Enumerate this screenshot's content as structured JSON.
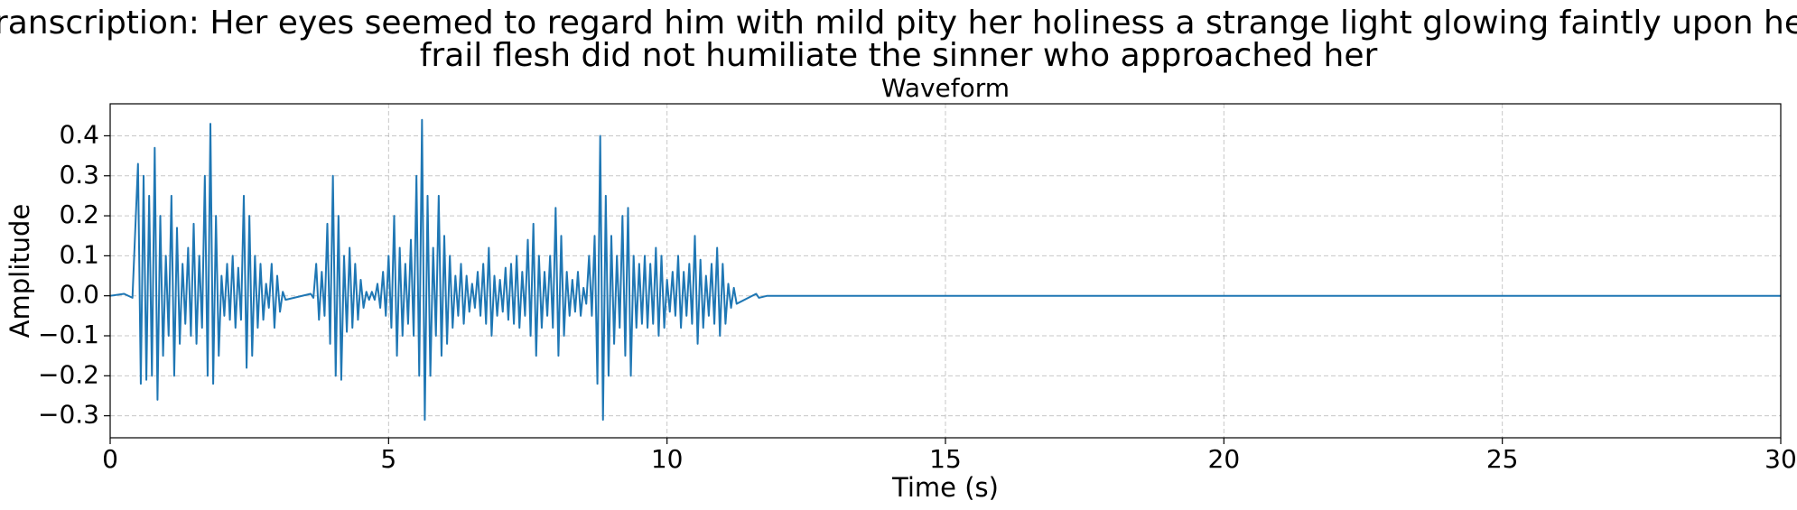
{
  "chart_data": {
    "type": "line",
    "title_lines": [
      "Transcription: Her eyes seemed to regard him with mild pity her holiness a strange light glowing faintly upon her",
      "frail flesh did not humiliate the sinner who approached her"
    ],
    "subtitle": "Waveform",
    "x_label": "Time (s)",
    "y_label": "Amplitude",
    "color": "#1f77b4",
    "grid": true,
    "xlim": [
      0,
      30
    ],
    "ylim": [
      -0.355,
      0.48
    ],
    "xticks": [
      0,
      5,
      10,
      15,
      20,
      25,
      30
    ],
    "yticks": [
      {
        "value": -0.3,
        "label": "−0.3"
      },
      {
        "value": -0.2,
        "label": "−0.2"
      },
      {
        "value": -0.1,
        "label": "−0.1"
      },
      {
        "value": 0,
        "label": "0.0"
      },
      0.1,
      0.2,
      0.3,
      0.4
    ],
    "x": [
      0,
      0.25,
      0.4,
      0.5,
      0.55,
      0.6,
      0.65,
      0.7,
      0.75,
      0.8,
      0.85,
      0.9,
      0.95,
      1.0,
      1.05,
      1.1,
      1.15,
      1.2,
      1.25,
      1.3,
      1.35,
      1.4,
      1.45,
      1.5,
      1.55,
      1.6,
      1.65,
      1.7,
      1.75,
      1.8,
      1.85,
      1.9,
      1.95,
      2.0,
      2.05,
      2.1,
      2.15,
      2.2,
      2.25,
      2.3,
      2.35,
      2.4,
      2.45,
      2.5,
      2.55,
      2.6,
      2.65,
      2.7,
      2.75,
      2.8,
      2.85,
      2.9,
      2.95,
      3.0,
      3.05,
      3.1,
      3.15,
      3.6,
      3.65,
      3.7,
      3.75,
      3.8,
      3.85,
      3.9,
      3.95,
      4.0,
      4.05,
      4.1,
      4.15,
      4.2,
      4.25,
      4.3,
      4.35,
      4.4,
      4.45,
      4.5,
      4.55,
      4.6,
      4.65,
      4.7,
      4.75,
      4.8,
      4.85,
      4.9,
      4.95,
      5.0,
      5.05,
      5.1,
      5.15,
      5.2,
      5.25,
      5.3,
      5.35,
      5.4,
      5.45,
      5.5,
      5.55,
      5.6,
      5.65,
      5.7,
      5.75,
      5.8,
      5.85,
      5.9,
      5.95,
      6.0,
      6.05,
      6.1,
      6.15,
      6.2,
      6.25,
      6.3,
      6.35,
      6.4,
      6.45,
      6.5,
      6.55,
      6.6,
      6.65,
      6.7,
      6.75,
      6.8,
      6.85,
      6.9,
      6.95,
      7.0,
      7.05,
      7.1,
      7.15,
      7.2,
      7.25,
      7.3,
      7.35,
      7.4,
      7.45,
      7.5,
      7.55,
      7.6,
      7.65,
      7.7,
      7.75,
      7.8,
      7.85,
      7.9,
      7.95,
      8.0,
      8.05,
      8.1,
      8.15,
      8.2,
      8.25,
      8.3,
      8.35,
      8.4,
      8.45,
      8.5,
      8.55,
      8.6,
      8.65,
      8.7,
      8.75,
      8.8,
      8.85,
      8.9,
      8.95,
      9.0,
      9.05,
      9.1,
      9.15,
      9.2,
      9.25,
      9.3,
      9.35,
      9.4,
      9.45,
      9.5,
      9.55,
      9.6,
      9.65,
      9.7,
      9.75,
      9.8,
      9.85,
      9.9,
      9.95,
      10.0,
      10.05,
      10.1,
      10.15,
      10.2,
      10.25,
      10.3,
      10.35,
      10.4,
      10.45,
      10.5,
      10.55,
      10.6,
      10.65,
      10.7,
      10.75,
      10.8,
      10.85,
      10.9,
      10.95,
      11.0,
      11.05,
      11.1,
      11.15,
      11.2,
      11.25,
      11.6,
      11.65,
      11.8,
      30
    ],
    "values": [
      0,
      0.005,
      -0.005,
      0.33,
      -0.22,
      0.3,
      -0.21,
      0.25,
      -0.2,
      0.37,
      -0.26,
      0.2,
      -0.15,
      0.1,
      -0.1,
      0.25,
      -0.2,
      0.17,
      -0.12,
      0.08,
      -0.07,
      0.12,
      -0.1,
      0.18,
      -0.12,
      0.1,
      -0.08,
      0.3,
      -0.2,
      0.43,
      -0.22,
      0.2,
      -0.15,
      0.05,
      -0.05,
      0.08,
      -0.06,
      0.1,
      -0.08,
      0.07,
      -0.06,
      0.25,
      -0.18,
      0.2,
      -0.15,
      0.1,
      -0.08,
      0.08,
      -0.06,
      0.03,
      -0.03,
      0.08,
      -0.08,
      0.05,
      -0.04,
      0.01,
      -0.01,
      0.005,
      -0.005,
      0.08,
      -0.06,
      0.06,
      -0.05,
      0.18,
      -0.12,
      0.3,
      -0.2,
      0.2,
      -0.21,
      0.1,
      -0.09,
      0.12,
      -0.08,
      0.08,
      -0.06,
      0.04,
      -0.03,
      0.01,
      -0.01,
      0.01,
      -0.01,
      0.03,
      -0.03,
      0.06,
      -0.05,
      0.1,
      -0.08,
      0.2,
      -0.15,
      0.12,
      -0.1,
      0.08,
      -0.07,
      0.14,
      -0.1,
      0.3,
      -0.2,
      0.44,
      -0.31,
      0.25,
      -0.2,
      0.12,
      -0.1,
      0.25,
      -0.15,
      0.15,
      -0.12,
      0.1,
      -0.08,
      0.05,
      -0.05,
      0.08,
      -0.07,
      0.05,
      -0.04,
      0.03,
      -0.03,
      0.06,
      -0.05,
      0.08,
      -0.07,
      0.12,
      -0.1,
      0.05,
      -0.05,
      0.04,
      -0.04,
      0.07,
      -0.06,
      0.08,
      -0.07,
      0.1,
      -0.08,
      0.06,
      -0.05,
      0.14,
      -0.1,
      0.18,
      -0.15,
      0.1,
      -0.08,
      0.06,
      -0.05,
      0.1,
      -0.08,
      0.22,
      -0.15,
      0.15,
      -0.1,
      0.06,
      -0.05,
      0.04,
      -0.04,
      0.06,
      -0.05,
      0.02,
      -0.02,
      0.1,
      -0.05,
      0.15,
      -0.22,
      0.4,
      -0.31,
      0.25,
      -0.2,
      0.15,
      -0.12,
      0.1,
      -0.08,
      0.2,
      -0.15,
      0.22,
      -0.2,
      0.1,
      -0.08,
      0.08,
      -0.07,
      0.1,
      -0.08,
      0.08,
      -0.07,
      0.12,
      -0.1,
      0.1,
      -0.08,
      0.04,
      -0.04,
      0.06,
      -0.05,
      0.1,
      -0.08,
      0.06,
      -0.05,
      0.08,
      -0.07,
      0.15,
      -0.12,
      0.09,
      -0.08,
      0.05,
      -0.05,
      0.08,
      -0.07,
      0.12,
      -0.1,
      0.08,
      -0.07,
      0.03,
      -0.03,
      0.02,
      -0.02,
      0.005,
      -0.005,
      0,
      0
    ]
  }
}
